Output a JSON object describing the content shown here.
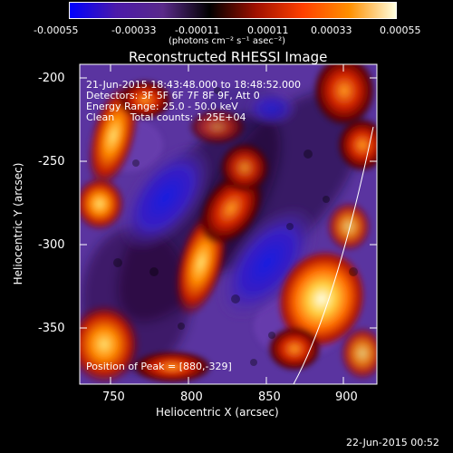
{
  "colorbar": {
    "ticks": [
      "-0.00055",
      "-0.00033",
      "-0.00011",
      "0.00011",
      "0.00033",
      "0.00055"
    ],
    "unit_label": "(photons cm⁻² s⁻¹ asec⁻²)",
    "colors": [
      "#0000ff",
      "#4b1aa9",
      "#5a2a8a",
      "#000000",
      "#a01000",
      "#ff4000",
      "#ff9000",
      "#ffffe0"
    ]
  },
  "title": "Reconstructed RHESSI Image",
  "info": {
    "time": "21-Jun-2015 18:43:48.000 to 18:48:52.000",
    "detectors": "Detectors: 3F 5F 6F 7F 8F 9F, Att 0",
    "energy": "Energy Range: 25.0 - 50.0 keV",
    "clean": "Clean     Total counts: 1.25E+04"
  },
  "peak": "Position of Peak = [880,-329]",
  "axes": {
    "xlabel": "Heliocentric X (arcsec)",
    "ylabel": "Heliocentric Y (arcsec)",
    "xticks": [
      "750",
      "800",
      "850",
      "900"
    ],
    "yticks": [
      "-200",
      "-250",
      "-300",
      "-350"
    ],
    "xlim": [
      725,
      917
    ],
    "ylim": [
      -385,
      -193
    ]
  },
  "timestamp": "22-Jun-2015 00:52"
}
